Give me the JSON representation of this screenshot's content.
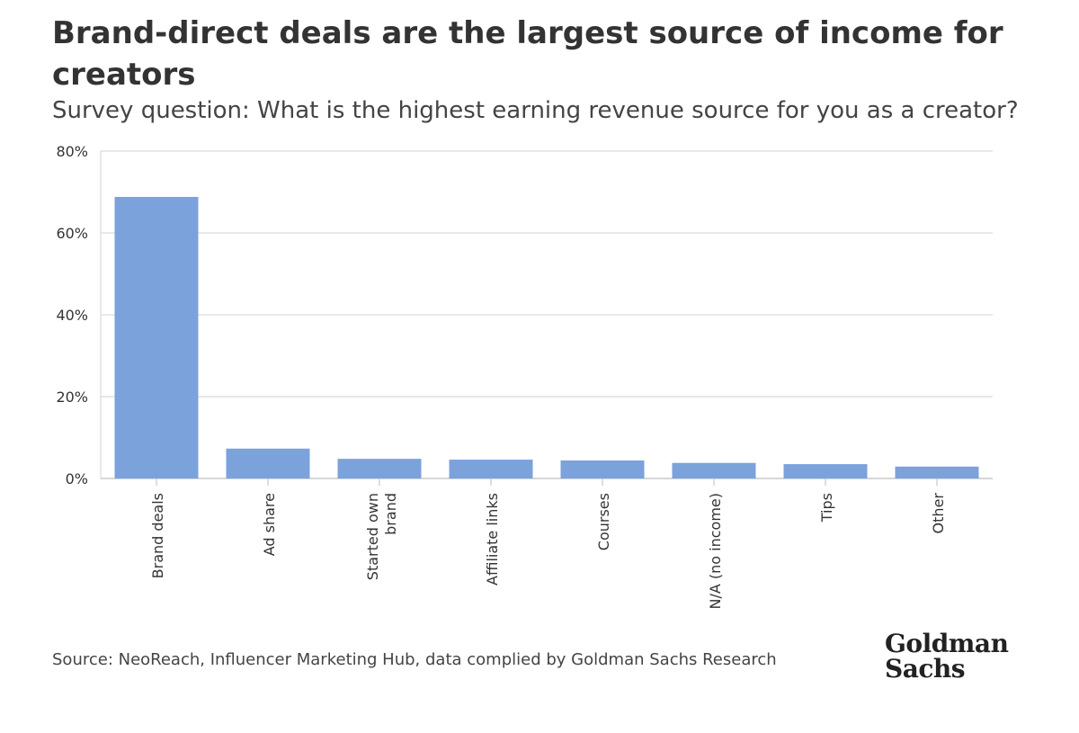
{
  "header": {
    "title": "Brand-direct deals are the largest source of income for creators",
    "subtitle": "Survey question: What is the highest earning revenue source for you as a creator?"
  },
  "footer": {
    "source": "Source: NeoReach, Influencer Marketing Hub, data complied by Goldman Sachs Research",
    "logo_line1": "Goldman",
    "logo_line2": "Sachs"
  },
  "colors": {
    "bar": "#7ba2db",
    "grid": "#d9d9d9",
    "text": "#333333"
  },
  "chart_data": {
    "type": "bar",
    "title": "Brand-direct deals are the largest source of income for creators",
    "subtitle": "Survey question: What is the highest earning revenue source for you as a creator?",
    "xlabel": "",
    "ylabel": "",
    "categories": [
      "Brand deals",
      "Ad share",
      "Started own brand",
      "Affiliate links",
      "Courses",
      "N/A (no income)",
      "Tips",
      "Other"
    ],
    "values": [
      68.8,
      7.3,
      4.8,
      4.6,
      4.4,
      3.8,
      3.5,
      2.9
    ],
    "ylim": [
      0,
      80
    ],
    "yticks": [
      0,
      20,
      40,
      60,
      80
    ],
    "ytick_labels": [
      "0%",
      "20%",
      "40%",
      "60%",
      "80%"
    ],
    "grid": true,
    "legend": "none"
  }
}
